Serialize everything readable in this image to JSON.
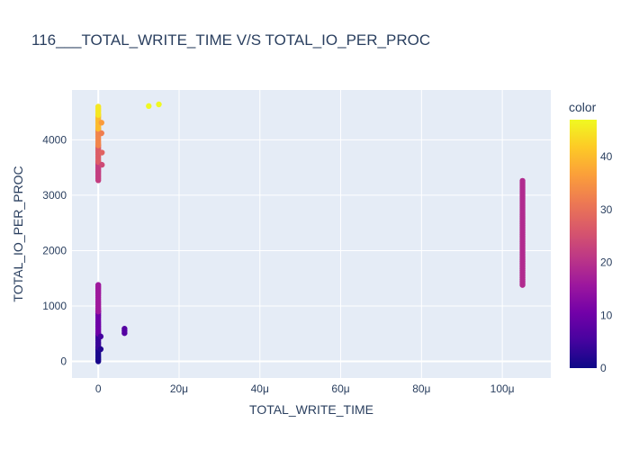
{
  "chart_data": {
    "type": "scatter",
    "title": "116___TOTAL_WRITE_TIME V/S TOTAL_IO_PER_PROC",
    "xlabel": "TOTAL_WRITE_TIME",
    "ylabel": "TOTAL_IO_PER_PROC",
    "xlim": [
      -6.5e-06,
      0.000112
    ],
    "ylim": [
      -300,
      4900
    ],
    "x_ticks": [
      0,
      2e-05,
      4e-05,
      6e-05,
      8e-05,
      0.0001
    ],
    "x_tick_labels": [
      "0",
      "20μ",
      "40μ",
      "60μ",
      "80μ",
      "100μ"
    ],
    "y_ticks": [
      0,
      1000,
      2000,
      3000,
      4000
    ],
    "y_tick_labels": [
      "0",
      "1000",
      "2000",
      "3000",
      "4000"
    ],
    "grid": true,
    "colorbar": {
      "title": "color",
      "range": [
        0,
        47
      ],
      "ticks": [
        0,
        10,
        20,
        30,
        40
      ],
      "tick_labels": [
        "0",
        "10",
        "20",
        "30",
        "40"
      ],
      "colorscale": [
        "#0d0887",
        "#46039f",
        "#7201a8",
        "#9c179e",
        "#bd3786",
        "#d8576b",
        "#ed7953",
        "#fb9f3a",
        "#fdca26",
        "#f0f921"
      ]
    },
    "series": [
      {
        "segments": [
          {
            "x": 0,
            "y_from": 0,
            "y_to": 250,
            "color": 1
          },
          {
            "x": 0,
            "y_from": 250,
            "y_to": 500,
            "color": 4
          },
          {
            "x": 0,
            "y_from": 500,
            "y_to": 900,
            "color": 10
          },
          {
            "x": 0,
            "y_from": 900,
            "y_to": 1380,
            "color": 16
          },
          {
            "x": 0,
            "y_from": 3270,
            "y_to": 3600,
            "color": 22
          },
          {
            "x": 0,
            "y_from": 3600,
            "y_to": 3900,
            "color": 27
          },
          {
            "x": 0,
            "y_from": 3900,
            "y_to": 4200,
            "color": 33
          },
          {
            "x": 0,
            "y_from": 4200,
            "y_to": 4450,
            "color": 40
          },
          {
            "x": 0,
            "y_from": 4450,
            "y_to": 4600,
            "color": 45
          },
          {
            "x": 6.5e-06,
            "y_from": 510,
            "y_to": 590,
            "color": 7
          },
          {
            "x": 0.000105,
            "y_from": 1380,
            "y_to": 3260,
            "color": 19
          }
        ]
      },
      {
        "points": [
          {
            "x": 6e-07,
            "y": 220,
            "color": 2
          },
          {
            "x": 6e-07,
            "y": 450,
            "color": 5
          },
          {
            "x": 9e-07,
            "y": 3550,
            "color": 24
          },
          {
            "x": 9e-07,
            "y": 3770,
            "color": 28
          },
          {
            "x": 8e-07,
            "y": 4120,
            "color": 32
          },
          {
            "x": 8e-07,
            "y": 4310,
            "color": 36
          },
          {
            "x": 1.25e-05,
            "y": 4610,
            "color": 47
          },
          {
            "x": 1.5e-05,
            "y": 4640,
            "color": 47
          }
        ]
      }
    ]
  }
}
